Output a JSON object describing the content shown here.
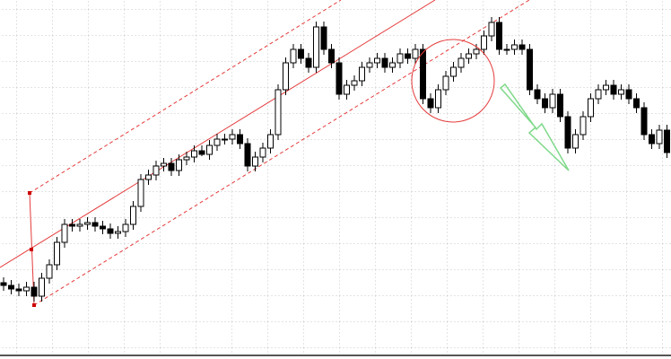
{
  "chart_data": {
    "type": "candlestick",
    "ylim": [
      0,
      400
    ],
    "up_color": "#ffffff",
    "down_color": "#000000",
    "open": [
      85,
      82,
      78,
      76,
      80,
      70,
      90,
      105,
      130,
      150,
      148,
      150,
      152,
      148,
      145,
      140,
      142,
      150,
      170,
      200,
      205,
      215,
      218,
      210,
      222,
      225,
      232,
      228,
      238,
      245,
      245,
      250,
      240,
      215,
      225,
      235,
      250,
      300,
      330,
      345,
      335,
      325,
      370,
      345,
      330,
      295,
      305,
      310,
      325,
      330,
      335,
      325,
      330,
      340,
      335,
      345,
      290,
      280,
      300,
      315,
      325,
      335,
      340,
      345,
      360,
      375,
      345,
      345,
      350,
      345,
      300,
      290,
      280,
      295,
      270,
      235,
      250,
      270,
      290,
      300,
      305,
      295,
      300,
      290,
      280,
      250,
      240,
      255
    ],
    "high": [
      91,
      88,
      84,
      86,
      86,
      96,
      111,
      136,
      156,
      156,
      156,
      158,
      158,
      154,
      151,
      148,
      156,
      176,
      206,
      211,
      221,
      224,
      224,
      228,
      231,
      238,
      238,
      244,
      251,
      251,
      256,
      256,
      246,
      231,
      241,
      256,
      306,
      336,
      351,
      351,
      341,
      376,
      376,
      351,
      336,
      311,
      316,
      331,
      336,
      341,
      341,
      336,
      346,
      346,
      351,
      351,
      296,
      306,
      321,
      331,
      341,
      346,
      351,
      366,
      381,
      381,
      351,
      356,
      356,
      351,
      306,
      296,
      301,
      301,
      276,
      256,
      276,
      296,
      306,
      311,
      311,
      306,
      306,
      296,
      286,
      256,
      261,
      261
    ],
    "low": [
      76,
      72,
      70,
      70,
      64,
      64,
      84,
      99,
      124,
      142,
      142,
      144,
      142,
      139,
      134,
      134,
      136,
      144,
      164,
      194,
      199,
      209,
      204,
      204,
      216,
      219,
      226,
      222,
      232,
      239,
      239,
      234,
      209,
      209,
      219,
      229,
      244,
      294,
      324,
      329,
      319,
      319,
      339,
      324,
      289,
      289,
      299,
      304,
      319,
      324,
      319,
      319,
      324,
      329,
      329,
      284,
      274,
      274,
      294,
      309,
      319,
      329,
      334,
      339,
      354,
      339,
      339,
      339,
      339,
      294,
      284,
      274,
      274,
      264,
      229,
      229,
      244,
      264,
      284,
      294,
      289,
      289,
      284,
      274,
      244,
      234,
      234,
      224
    ],
    "close": [
      82,
      78,
      76,
      80,
      70,
      90,
      105,
      130,
      150,
      148,
      150,
      152,
      148,
      145,
      140,
      142,
      150,
      170,
      200,
      205,
      215,
      218,
      210,
      222,
      225,
      232,
      228,
      238,
      245,
      245,
      250,
      240,
      215,
      225,
      235,
      250,
      300,
      330,
      345,
      335,
      325,
      370,
      345,
      330,
      295,
      305,
      310,
      325,
      330,
      335,
      325,
      330,
      340,
      335,
      345,
      290,
      280,
      300,
      315,
      325,
      335,
      340,
      345,
      360,
      375,
      345,
      345,
      350,
      345,
      300,
      290,
      280,
      295,
      270,
      235,
      250,
      270,
      290,
      300,
      305,
      295,
      300,
      290,
      280,
      250,
      240,
      255,
      230
    ]
  }
}
